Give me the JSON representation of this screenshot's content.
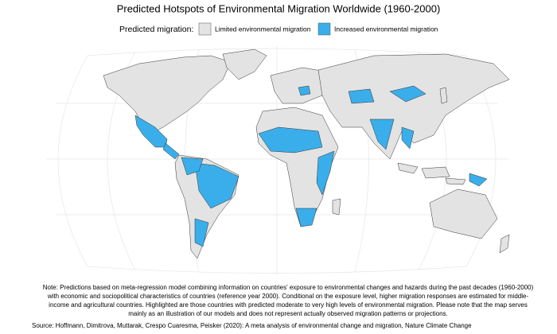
{
  "title": "Predicted Hotspots of Environmental Migration Worldwide (1960-2000)",
  "legend": {
    "title": "Predicted migration:",
    "items": [
      {
        "label": "Limited environmental migration",
        "color": "#e3e3e3"
      },
      {
        "label": "Increased environmental migration",
        "color": "#3aaeea"
      }
    ]
  },
  "note": [
    "Note: Predictions based on meta-regression model combining information on countries' exposure to environmental changes and hazards during the past decades (1960-2000)",
    "with economic and sociopolitical characteristics of countries (reference year 2000). Conditional on the exposure level, higher migration responses are estimated for middle-",
    "income and agricultural countries. Highlighted are those countries with predicted moderate to very high levels of environmental migration. Please note that the map serves",
    "mainly as an illustration of our models and does not represent actually observed migration patterns or projections."
  ],
  "source": "Source: Hoffmann, Dimitrova, Muttarak, Crespo Cuaresma, Peisker (2020): A meta analysis of environmental change and migration, Nature Climate Change"
}
